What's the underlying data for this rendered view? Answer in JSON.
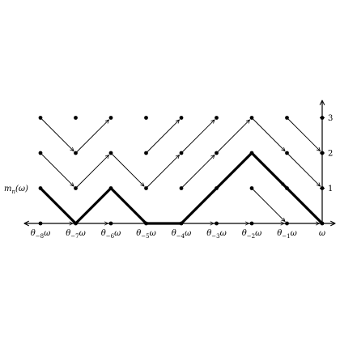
{
  "diagram": {
    "x_tick_labels": [
      {
        "base": "θ",
        "sub": "−8",
        "suffix": "ω"
      },
      {
        "base": "θ",
        "sub": "−7",
        "suffix": "ω"
      },
      {
        "base": "θ",
        "sub": "−6",
        "suffix": "ω"
      },
      {
        "base": "θ",
        "sub": "−5",
        "suffix": "ω"
      },
      {
        "base": "θ",
        "sub": "−4",
        "suffix": "ω"
      },
      {
        "base": "θ",
        "sub": "−3",
        "suffix": "ω"
      },
      {
        "base": "θ",
        "sub": "−2",
        "suffix": "ω"
      },
      {
        "base": "θ",
        "sub": "−1",
        "suffix": "ω"
      },
      {
        "base": "ω",
        "sub": "",
        "suffix": ""
      }
    ],
    "y_tick_labels": [
      "1",
      "2",
      "3"
    ],
    "curve_label": {
      "pre": "m",
      "sub": "n",
      "post": "(ω)"
    },
    "thick_path": [
      [
        -8,
        1
      ],
      [
        -7,
        0
      ],
      [
        -6,
        1
      ],
      [
        -5,
        0
      ],
      [
        -4,
        0
      ],
      [
        -2,
        2
      ],
      [
        0,
        0
      ]
    ],
    "arrows": [
      [
        [
          -8,
          3
        ],
        [
          -7,
          2
        ]
      ],
      [
        [
          -7,
          2
        ],
        [
          -6,
          3
        ]
      ],
      [
        [
          -5,
          2
        ],
        [
          -4,
          3
        ]
      ],
      [
        [
          -4,
          2
        ],
        [
          -3,
          3
        ]
      ],
      [
        [
          -4,
          1
        ],
        [
          -3,
          2
        ]
      ],
      [
        [
          -3,
          2
        ],
        [
          -2,
          3
        ]
      ],
      [
        [
          -2,
          3
        ],
        [
          -1,
          2
        ]
      ],
      [
        [
          -1,
          3
        ],
        [
          0,
          2
        ]
      ],
      [
        [
          -1,
          2
        ],
        [
          0,
          1
        ]
      ],
      [
        [
          -2,
          1
        ],
        [
          -1,
          0
        ]
      ],
      [
        [
          -8,
          2
        ],
        [
          -7,
          1
        ]
      ],
      [
        [
          -7,
          1
        ],
        [
          -6,
          2
        ]
      ],
      [
        [
          -6,
          2
        ],
        [
          -5,
          1
        ]
      ],
      [
        [
          -5,
          1
        ],
        [
          -4,
          2
        ]
      ],
      [
        [
          -8,
          0
        ],
        [
          -7,
          0
        ]
      ],
      [
        [
          -7,
          0
        ],
        [
          -6,
          0
        ]
      ],
      [
        [
          -4,
          0
        ],
        [
          -3,
          0
        ]
      ],
      [
        [
          -3,
          0
        ],
        [
          -2,
          0
        ]
      ],
      [
        [
          -2,
          0
        ],
        [
          -1,
          0
        ]
      ],
      [
        [
          -1,
          0
        ],
        [
          0,
          0
        ]
      ],
      [
        [
          -2,
          2
        ],
        [
          -1,
          1
        ]
      ]
    ],
    "dots": [
      [
        -8,
        3
      ],
      [
        -7,
        3
      ],
      [
        -6,
        3
      ],
      [
        -5,
        3
      ],
      [
        -4,
        3
      ],
      [
        -3,
        3
      ],
      [
        -2,
        3
      ],
      [
        -1,
        3
      ],
      [
        0,
        3
      ],
      [
        -8,
        2
      ],
      [
        -7,
        2
      ],
      [
        -6,
        2
      ],
      [
        -5,
        2
      ],
      [
        -4,
        2
      ],
      [
        -3,
        2
      ],
      [
        -2,
        2
      ],
      [
        -1,
        2
      ],
      [
        0,
        2
      ],
      [
        -8,
        1
      ],
      [
        -7,
        1
      ],
      [
        -6,
        1
      ],
      [
        -5,
        1
      ],
      [
        -4,
        1
      ],
      [
        -3,
        1
      ],
      [
        -2,
        1
      ],
      [
        -1,
        1
      ],
      [
        0,
        1
      ],
      [
        -8,
        0
      ],
      [
        -7,
        0
      ],
      [
        -6,
        0
      ],
      [
        -5,
        0
      ],
      [
        -4,
        0
      ],
      [
        -3,
        0
      ],
      [
        -2,
        0
      ],
      [
        -1,
        0
      ],
      [
        0,
        0
      ]
    ]
  }
}
